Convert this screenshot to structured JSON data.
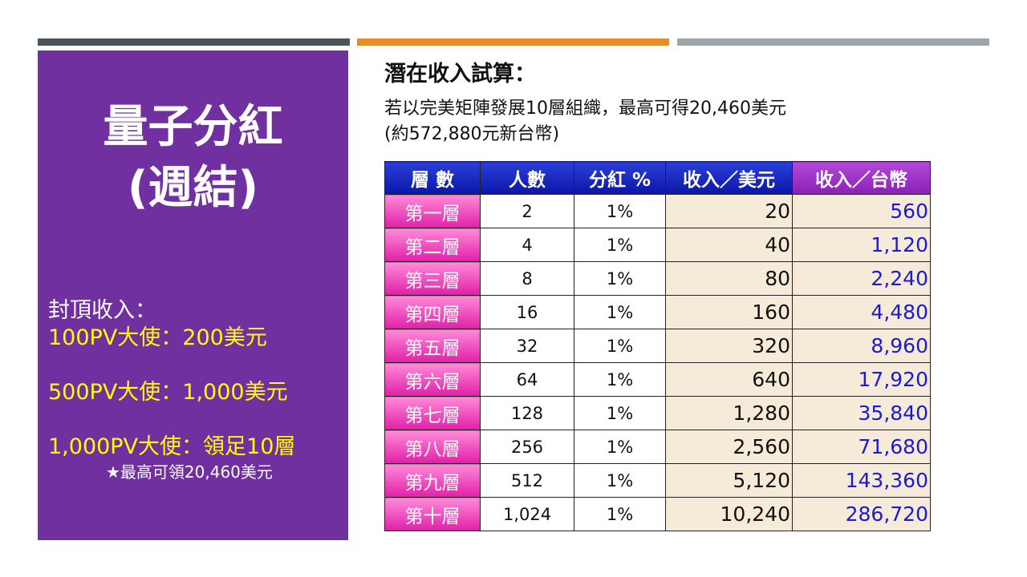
{
  "left": {
    "title_line1": "量子分紅",
    "title_line2": "(週結)",
    "cap_heading": "封頂收入：",
    "cap_lines": [
      "100PV大使：200美元",
      "500PV大使：1,000美元",
      "1,000PV大使：領足10層"
    ],
    "cap_note": "★最高可領20,460美元"
  },
  "right": {
    "title": "潛在收入試算：",
    "subtitle_line1": "若以完美矩陣發展10層組織，最高可得20,460美元",
    "subtitle_line2": "(約572,880元新台幣)"
  },
  "table": {
    "headers": [
      "層 數",
      "人數",
      "分紅 %",
      "收入／美元",
      "收入／台幣"
    ],
    "rows": [
      {
        "level": "第一層",
        "people": "2",
        "pct": "1%",
        "usd": "20",
        "twd": "560"
      },
      {
        "level": "第二層",
        "people": "4",
        "pct": "1%",
        "usd": "40",
        "twd": "1,120"
      },
      {
        "level": "第三層",
        "people": "8",
        "pct": "1%",
        "usd": "80",
        "twd": "2,240"
      },
      {
        "level": "第四層",
        "people": "16",
        "pct": "1%",
        "usd": "160",
        "twd": "4,480"
      },
      {
        "level": "第五層",
        "people": "32",
        "pct": "1%",
        "usd": "320",
        "twd": "8,960"
      },
      {
        "level": "第六層",
        "people": "64",
        "pct": "1%",
        "usd": "640",
        "twd": "17,920"
      },
      {
        "level": "第七層",
        "people": "128",
        "pct": "1%",
        "usd": "1,280",
        "twd": "35,840"
      },
      {
        "level": "第八層",
        "people": "256",
        "pct": "1%",
        "usd": "2,560",
        "twd": "71,680"
      },
      {
        "level": "第九層",
        "people": "512",
        "pct": "1%",
        "usd": "5,120",
        "twd": "143,360"
      },
      {
        "level": "第十層",
        "people": "1,024",
        "pct": "1%",
        "usd": "10,240",
        "twd": "286,720"
      }
    ]
  },
  "colors": {
    "panel": "#7030a0",
    "highlight_text": "#ffff00",
    "header_blue": "#0b16a8",
    "header_purple": "#8a1fb8",
    "level_pink": "#e020a8",
    "money_cell": "#f5ebd8",
    "twd_text": "#1a1ad6"
  }
}
